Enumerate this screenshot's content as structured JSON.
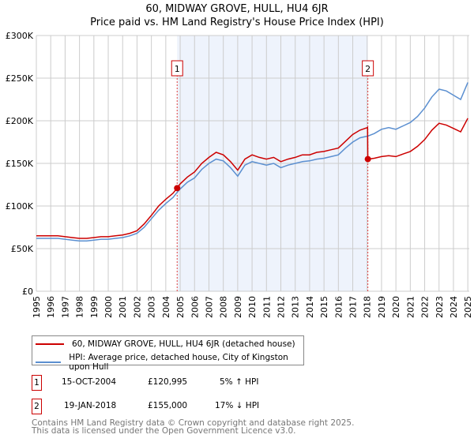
{
  "chart_data": {
    "type": "line",
    "title": "60, MIDWAY GROVE, HULL, HU4 6JR",
    "subtitle": "Price paid vs. HM Land Registry's House Price Index (HPI)",
    "xlim": [
      1995,
      2025.1
    ],
    "ylim": [
      0,
      300000
    ],
    "yticks": [
      0,
      50000,
      100000,
      150000,
      200000,
      250000,
      300000
    ],
    "ytick_labels": [
      "£0",
      "£50K",
      "£100K",
      "£150K",
      "£200K",
      "£250K",
      "£300K"
    ],
    "xticks": [
      1995,
      1996,
      1997,
      1998,
      1999,
      2000,
      2001,
      2002,
      2003,
      2004,
      2005,
      2006,
      2007,
      2008,
      2009,
      2010,
      2011,
      2012,
      2013,
      2014,
      2015,
      2016,
      2017,
      2018,
      2019,
      2020,
      2021,
      2022,
      2023,
      2024,
      2025
    ],
    "grid": true,
    "shaded_range": [
      2004.79,
      2018.05
    ],
    "series": [
      {
        "name": "60, MIDWAY GROVE, HULL, HU4 6JR (detached house)",
        "color": "#cc0000",
        "x": [
          1995,
          1995.5,
          1996,
          1996.5,
          1997,
          1997.5,
          1998,
          1998.5,
          1999,
          1999.5,
          2000,
          2000.5,
          2001,
          2001.5,
          2002,
          2002.5,
          2003,
          2003.5,
          2004,
          2004.5,
          2004.79,
          2005,
          2005.5,
          2006,
          2006.5,
          2007,
          2007.5,
          2008,
          2008.5,
          2009,
          2009.5,
          2010,
          2010.5,
          2011,
          2011.5,
          2012,
          2012.5,
          2013,
          2013.5,
          2014,
          2014.5,
          2015,
          2015.5,
          2016,
          2016.5,
          2017,
          2017.5,
          2018.03,
          2018.05,
          2018.5,
          2019,
          2019.5,
          2020,
          2020.5,
          2021,
          2021.5,
          2022,
          2022.5,
          2023,
          2023.5,
          2024,
          2024.5,
          2025
        ],
        "y": [
          65,
          65,
          65,
          65,
          64,
          63,
          62,
          62,
          63,
          64,
          64,
          65,
          66,
          68,
          71,
          79,
          89,
          100,
          108,
          115,
          121,
          126,
          134,
          140,
          150,
          157,
          163,
          160,
          152,
          142,
          155,
          160,
          157,
          155,
          157,
          152,
          155,
          157,
          160,
          160,
          163,
          164,
          166,
          168,
          176,
          184,
          189,
          192,
          155,
          156,
          158,
          159,
          158,
          161,
          164,
          170,
          178,
          189,
          197,
          195,
          191,
          187,
          203
        ]
      },
      {
        "name": "HPI: Average price, detached house, City of Kingston upon Hull",
        "color": "#5b8fd0",
        "x": [
          1995,
          1995.5,
          1996,
          1996.5,
          1997,
          1997.5,
          1998,
          1998.5,
          1999,
          1999.5,
          2000,
          2000.5,
          2001,
          2001.5,
          2002,
          2002.5,
          2003,
          2003.5,
          2004,
          2004.5,
          2004.79,
          2005,
          2005.5,
          2006,
          2006.5,
          2007,
          2007.5,
          2008,
          2008.5,
          2009,
          2009.5,
          2010,
          2010.5,
          2011,
          2011.5,
          2012,
          2012.5,
          2013,
          2013.5,
          2014,
          2014.5,
          2015,
          2015.5,
          2016,
          2016.5,
          2017,
          2017.5,
          2018.05,
          2018.5,
          2019,
          2019.5,
          2020,
          2020.5,
          2021,
          2021.5,
          2022,
          2022.5,
          2023,
          2023.5,
          2024,
          2024.5,
          2025
        ],
        "y": [
          62,
          62,
          62,
          62,
          61,
          60,
          59,
          59,
          60,
          61,
          61,
          62,
          63,
          65,
          68,
          75,
          85,
          95,
          103,
          110,
          116,
          120,
          128,
          133,
          143,
          150,
          155,
          153,
          145,
          135,
          148,
          152,
          150,
          148,
          150,
          145,
          148,
          150,
          152,
          153,
          155,
          156,
          158,
          160,
          168,
          175,
          180,
          182,
          185,
          190,
          192,
          190,
          194,
          198,
          205,
          215,
          228,
          237,
          235,
          230,
          225,
          245
        ]
      }
    ],
    "y_unit": "thousands GBP",
    "sales": [
      {
        "marker": "1",
        "date": "15-OCT-2004",
        "price": "£120,995",
        "hpi": "5% ↑ HPI",
        "x": 2004.79,
        "y": 121
      },
      {
        "marker": "2",
        "date": "19-JAN-2018",
        "price": "£155,000",
        "hpi": "17% ↓ HPI",
        "x": 2018.05,
        "y": 155
      }
    ]
  },
  "legend": {
    "items": [
      "60, MIDWAY GROVE, HULL, HU4 6JR (detached house)",
      "HPI: Average price, detached house, City of Kingston upon Hull"
    ]
  },
  "footer": {
    "line1": "Contains HM Land Registry data © Crown copyright and database right 2025.",
    "line2": "This data is licensed under the Open Government Licence v3.0."
  }
}
